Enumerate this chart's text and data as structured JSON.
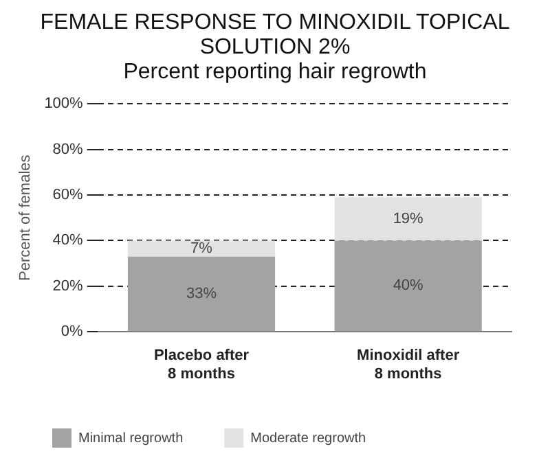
{
  "chart_data": {
    "type": "bar",
    "title": "FEMALE RESPONSE TO MINOXIDIL TOPICAL SOLUTION 2%",
    "subtitle": "Percent reporting hair regrowth",
    "ylabel": "Percent of females",
    "categories": [
      "Placebo after\n8 months",
      "Minoxidil after\n8 months"
    ],
    "series": [
      {
        "name": "Minimal regrowth",
        "color": "#a3a3a3",
        "values": [
          33,
          40
        ],
        "value_labels": [
          "33%",
          "40%"
        ]
      },
      {
        "name": "Moderate regrowth",
        "color": "#e2e2e2",
        "values": [
          7,
          19
        ],
        "value_labels": [
          "7%",
          "19%"
        ]
      }
    ],
    "stacked": true,
    "ylim": [
      0,
      100
    ],
    "yticks": [
      {
        "value": 0,
        "label": "0%"
      },
      {
        "value": 20,
        "label": "20%"
      },
      {
        "value": 40,
        "label": "40%"
      },
      {
        "value": 60,
        "label": "60%"
      },
      {
        "value": 80,
        "label": "80%"
      },
      {
        "value": 100,
        "label": "100%"
      }
    ],
    "grid": "y",
    "line_style": "dashed",
    "legend": "bottom left"
  }
}
